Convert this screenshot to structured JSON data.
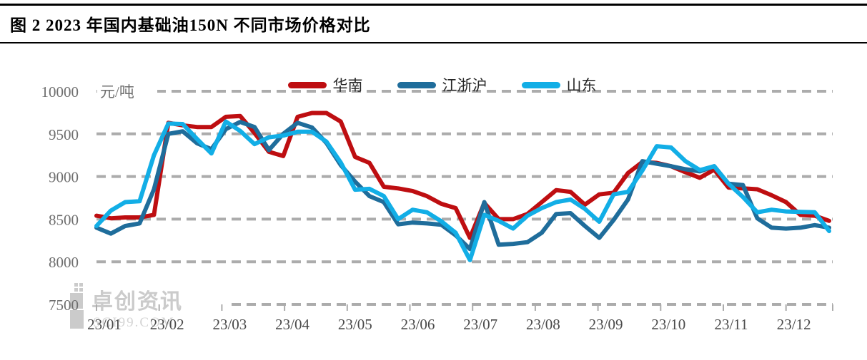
{
  "header": {
    "title": "图 2 2023 年国内基础油150N 不同市场价格对比"
  },
  "chart_data": {
    "type": "line",
    "title": "图 2 2023 年国内基础油150N 不同市场价格对比",
    "unit_label": "元/吨",
    "ylabel": "元/吨",
    "ylim": [
      7500,
      10000
    ],
    "y_ticks": [
      10000,
      9500,
      9000,
      8500,
      8000,
      7500
    ],
    "x_tick_labels": [
      "23/01",
      "23/02",
      "23/03",
      "23/04",
      "23/05",
      "23/06",
      "23/07",
      "23/08",
      "23/09",
      "23/10",
      "23/11",
      "23/12"
    ],
    "x_frequency": "weekly",
    "grid": "horizontal-dashed",
    "legend_position": "top-center",
    "series": [
      {
        "name": "华南",
        "color": "#BE0E11",
        "values": [
          8540,
          8510,
          8520,
          8520,
          8550,
          9630,
          9600,
          9580,
          9580,
          9700,
          9710,
          9510,
          9290,
          9240,
          9700,
          9745,
          9745,
          9645,
          9230,
          9160,
          8880,
          8860,
          8830,
          8770,
          8680,
          8630,
          8280,
          8690,
          8500,
          8500,
          8560,
          8700,
          8840,
          8820,
          8670,
          8790,
          8810,
          9040,
          9170,
          9160,
          9120,
          9050,
          8985,
          9080,
          8870,
          8860,
          8850,
          8780,
          8700,
          8550,
          8540,
          8480
        ]
      },
      {
        "name": "江浙沪",
        "color": "#1F6D9B",
        "values": [
          8400,
          8330,
          8420,
          8450,
          8850,
          9500,
          9530,
          9390,
          9320,
          9555,
          9640,
          9580,
          9310,
          9500,
          9630,
          9575,
          9395,
          9135,
          8940,
          8770,
          8700,
          8440,
          8460,
          8450,
          8435,
          8310,
          8150,
          8700,
          8200,
          8210,
          8230,
          8340,
          8560,
          8570,
          8420,
          8280,
          8490,
          8730,
          9180,
          9150,
          9120,
          9085,
          9060,
          9120,
          8915,
          8900,
          8510,
          8400,
          8390,
          8400,
          8430,
          8400
        ]
      },
      {
        "name": "山东",
        "color": "#12AEE6",
        "values": [
          8420,
          8600,
          8700,
          8710,
          9250,
          9620,
          9615,
          9440,
          9270,
          9645,
          9535,
          9380,
          9460,
          9480,
          9525,
          9525,
          9410,
          9165,
          8845,
          8855,
          8770,
          8500,
          8610,
          8580,
          8475,
          8340,
          8020,
          8550,
          8480,
          8390,
          8540,
          8630,
          8700,
          8730,
          8620,
          8470,
          8790,
          8820,
          9070,
          9355,
          9340,
          9180,
          9075,
          9120,
          8915,
          8760,
          8580,
          8610,
          8590,
          8585,
          8580,
          8360
        ]
      }
    ]
  },
  "watermark": {
    "name": "卓创资讯",
    "domain": "SCI99.COM"
  },
  "colors": {
    "grid": "#ACACAC",
    "tick": "#ACACAC",
    "y_label": "#6E6E6E",
    "x_label": "#4A4A4A",
    "legend_text": "#262626",
    "title": "#000000",
    "watermark": "#CBCBCB"
  }
}
